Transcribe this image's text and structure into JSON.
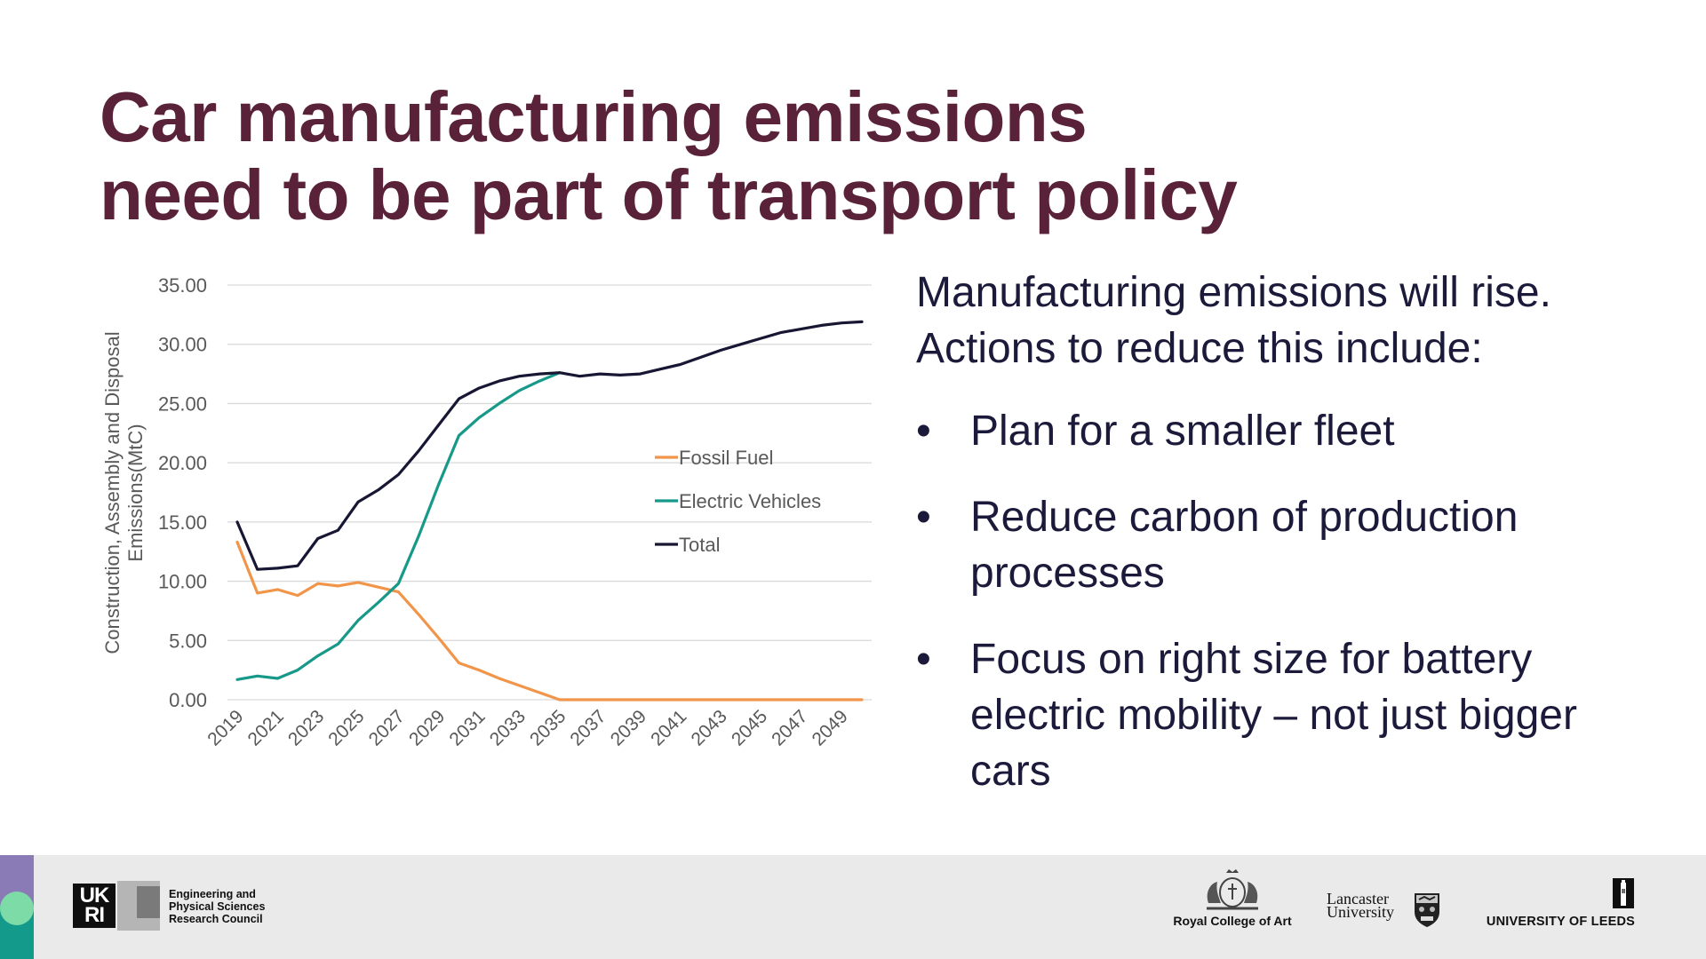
{
  "title": {
    "lines": [
      "Car manufacturing emissions",
      "need to be part of transport policy"
    ]
  },
  "body": {
    "intro_lines": [
      "Manufacturing emissions will rise.",
      "Actions to reduce this include:"
    ],
    "bullet_symbol": "•",
    "bullets": [
      {
        "lines": [
          "Plan for a smaller fleet"
        ]
      },
      {
        "lines": [
          "Reduce carbon of production",
          "processes"
        ]
      },
      {
        "lines": [
          "Focus on right size for battery",
          "electric mobility – not just bigger",
          "cars"
        ]
      }
    ]
  },
  "colors": {
    "title": "#5a2238",
    "body": "#1b1a3a",
    "fossil_fuel": "#f0954a",
    "electric_vehicles": "#17998a",
    "total": "#171733",
    "gridline": "#d9d9d9",
    "footer_bg": "#eaeaea"
  },
  "chart_data": {
    "type": "line",
    "title": "",
    "xlabel": "",
    "ylabel": "Construction, Assembly and Disposal Emissions(MtC)",
    "ylabel_lines": [
      "Construction, Assembly and Disposal",
      "Emissions(MtC)"
    ],
    "ylim": [
      0,
      35
    ],
    "yticks": [
      0,
      5,
      10,
      15,
      20,
      25,
      30,
      35
    ],
    "ytick_labels": [
      "0.00",
      "5.00",
      "10.00",
      "15.00",
      "20.00",
      "25.00",
      "30.00",
      "35.00"
    ],
    "grid": true,
    "legend_position": "center-right",
    "x": [
      2019,
      2020,
      2021,
      2022,
      2023,
      2024,
      2025,
      2026,
      2027,
      2028,
      2029,
      2030,
      2031,
      2032,
      2033,
      2034,
      2035,
      2036,
      2037,
      2038,
      2039,
      2040,
      2041,
      2042,
      2043,
      2044,
      2045,
      2046,
      2047,
      2048,
      2049,
      2050
    ],
    "xtick_labels": [
      "2019",
      "2021",
      "2023",
      "2025",
      "2027",
      "2029",
      "2031",
      "2033",
      "2035",
      "2037",
      "2039",
      "2041",
      "2043",
      "2045",
      "2047",
      "2049"
    ],
    "series": [
      {
        "name": "Fossil Fuel",
        "values": [
          13.3,
          9.0,
          9.3,
          8.8,
          9.8,
          9.6,
          9.9,
          9.5,
          9.1,
          7.2,
          5.2,
          3.1,
          2.5,
          1.8,
          1.2,
          0.6,
          0.0,
          0.0,
          0.0,
          0.0,
          0.0,
          0.0,
          0.0,
          0.0,
          0.0,
          0.0,
          0.0,
          0.0,
          0.0,
          0.0,
          0.0,
          0.0
        ]
      },
      {
        "name": "Electric Vehicles",
        "values": [
          1.7,
          2.0,
          1.8,
          2.5,
          3.7,
          4.7,
          6.7,
          8.2,
          9.8,
          13.8,
          18.2,
          22.3,
          23.8,
          25.0,
          26.1,
          26.9,
          27.6,
          null,
          null,
          null,
          null,
          null,
          null,
          null,
          null,
          null,
          null,
          null,
          null,
          null,
          null,
          null
        ]
      },
      {
        "name": "Total",
        "values": [
          15.0,
          11.0,
          11.1,
          11.3,
          13.6,
          14.3,
          16.7,
          17.7,
          19.0,
          21.0,
          23.2,
          25.4,
          26.3,
          26.9,
          27.3,
          27.5,
          27.6,
          27.3,
          27.5,
          27.4,
          27.5,
          27.9,
          28.3,
          28.9,
          29.5,
          30.0,
          30.5,
          31.0,
          31.3,
          31.6,
          31.8,
          31.9
        ]
      }
    ]
  },
  "footer": {
    "ukri_mark": [
      "UK",
      "RI"
    ],
    "epsrc_lines": [
      "Engineering and",
      "Physical Sciences",
      "Research Council"
    ],
    "rca_name": "Royal College of Art",
    "lancaster_lines": [
      "Lancaster",
      "University"
    ],
    "leeds_name": "UNIVERSITY OF LEEDS"
  }
}
